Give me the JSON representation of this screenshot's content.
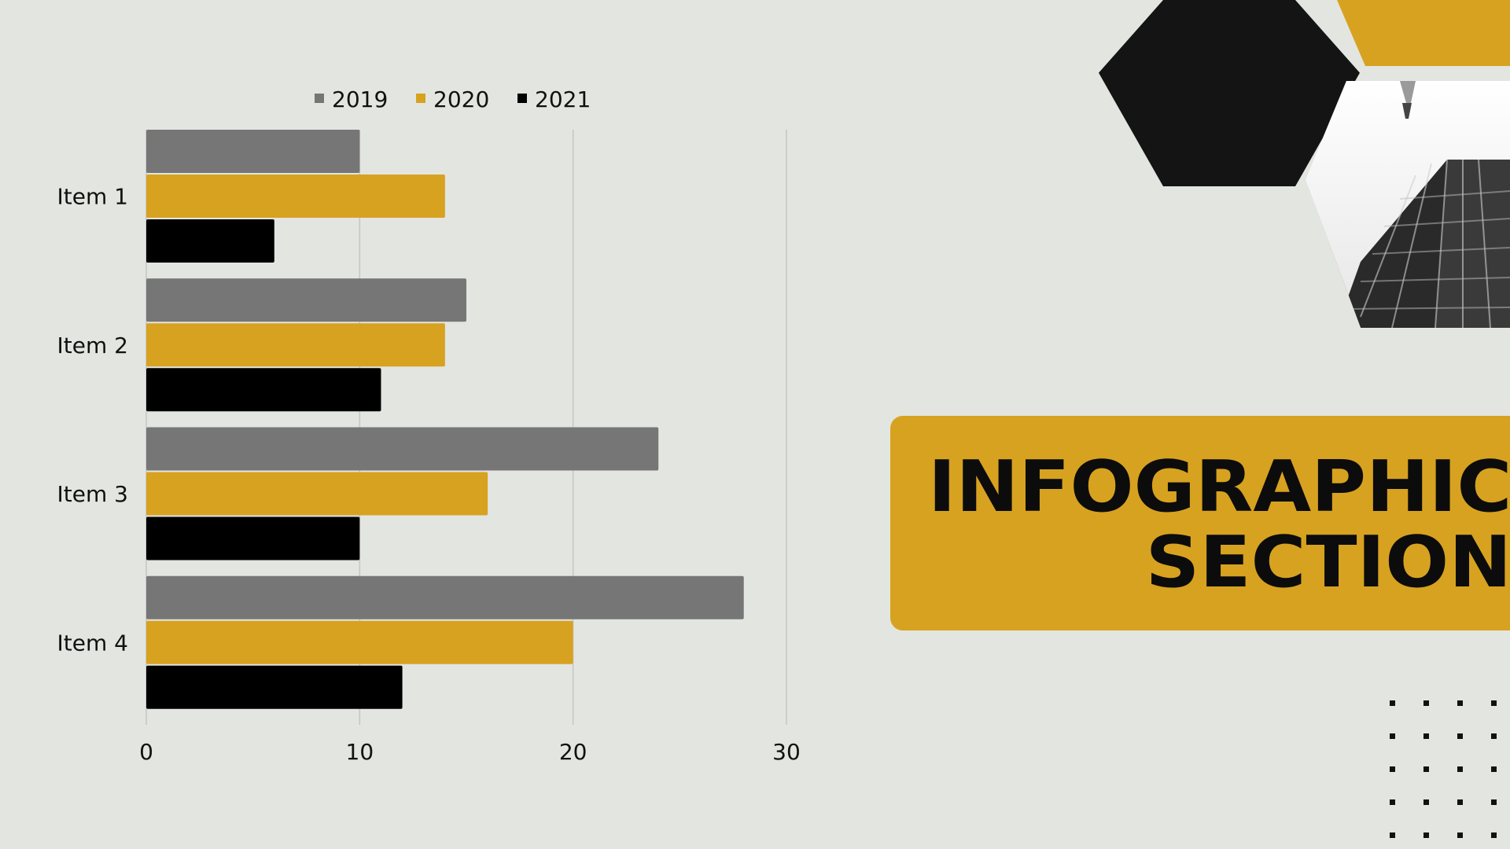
{
  "chart_data": {
    "type": "bar",
    "orientation": "horizontal",
    "categories": [
      "Item 1",
      "Item 2",
      "Item 3",
      "Item 4"
    ],
    "series": [
      {
        "name": "2019",
        "color": "#767676",
        "values": [
          10,
          15,
          24,
          28
        ]
      },
      {
        "name": "2020",
        "color": "#d7a220",
        "values": [
          14,
          14,
          16,
          20
        ]
      },
      {
        "name": "2021",
        "color": "#000000",
        "values": [
          6,
          11,
          10,
          12
        ]
      }
    ],
    "xlim": [
      0,
      30
    ],
    "xticks": [
      "0",
      "10",
      "20",
      "30"
    ],
    "grid": true,
    "legend_position": "top"
  },
  "title": {
    "line1": "INFOGRAPHIC",
    "line2": "SECTION"
  },
  "decor": {
    "photo_icon": "skyscraper-photo-icon"
  }
}
